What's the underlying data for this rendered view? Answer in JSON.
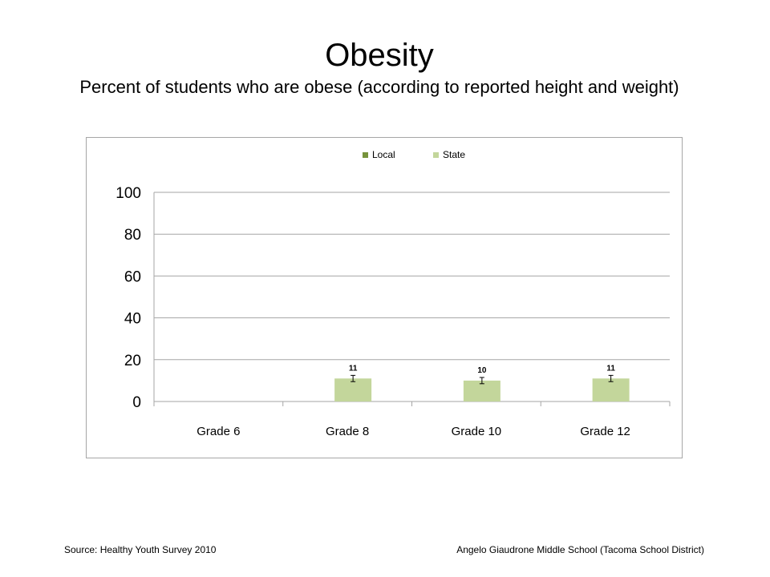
{
  "header": {
    "title": "Obesity",
    "subtitle": "Percent of students who are obese (according to reported height and weight)"
  },
  "footer": {
    "source": "Source: Healthy Youth Survey 2010",
    "school": "Angelo Giaudrone Middle School (Tacoma School District)"
  },
  "colors": {
    "local": "#77933c",
    "state": "#c3d69b",
    "grid": "#a6a6a6",
    "axis": "#a6a6a6"
  },
  "chart_data": {
    "type": "bar",
    "title": "",
    "xlabel": "",
    "ylabel": "",
    "ylim": [
      0,
      100
    ],
    "yticks": [
      0,
      20,
      40,
      60,
      80,
      100
    ],
    "grid": true,
    "legend_position": "top",
    "categories": [
      "Grade 6",
      "Grade 8",
      "Grade 10",
      "Grade 12"
    ],
    "series": [
      {
        "name": "Local",
        "values": [
          null,
          null,
          null,
          null
        ],
        "labels": [
          "",
          "",
          "",
          ""
        ]
      },
      {
        "name": "State",
        "values": [
          null,
          11,
          10,
          11
        ],
        "labels": [
          "",
          "11",
          "10",
          "11"
        ],
        "error": [
          null,
          1.5,
          1.5,
          1.5
        ]
      }
    ]
  }
}
